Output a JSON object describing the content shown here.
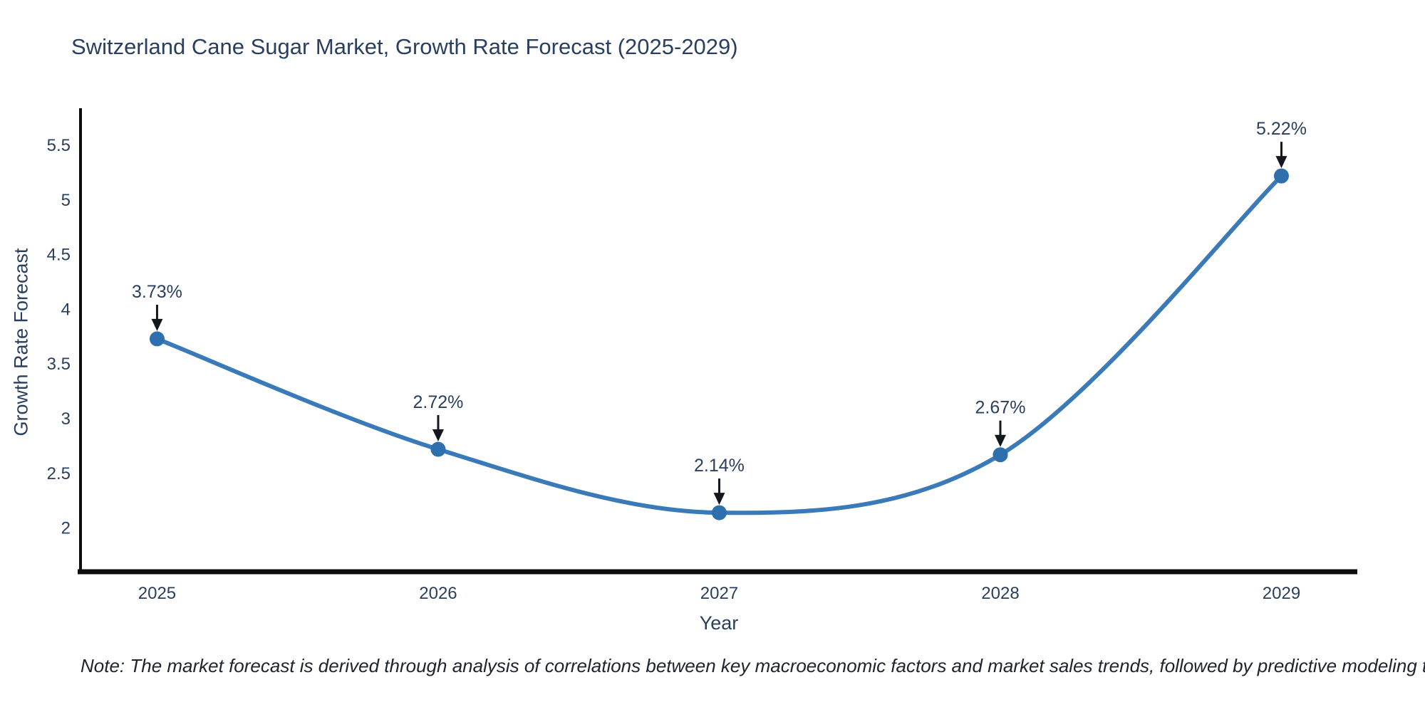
{
  "title": "Switzerland Cane Sugar Market, Growth Rate Forecast (2025-2029)",
  "note": "Note: The market forecast is derived through analysis of correlations between key macroeconomic factors and market sales trends, followed by predictive modeling to project future sales",
  "chart_data": {
    "type": "line",
    "title": "Switzerland Cane Sugar Market, Growth Rate Forecast (2025-2029)",
    "xlabel": "Year",
    "ylabel": "Growth Rate Forecast",
    "x": [
      2025,
      2026,
      2027,
      2028,
      2029
    ],
    "series": [
      {
        "name": "Growth Rate Forecast",
        "values": [
          3.73,
          2.72,
          2.14,
          2.67,
          5.22
        ],
        "point_labels": [
          "3.73%",
          "2.72%",
          "2.14%",
          "2.67%",
          "5.22%"
        ]
      }
    ],
    "x_tick_labels": [
      "2025",
      "2026",
      "2027",
      "2028",
      "2029"
    ],
    "y_ticks": [
      2,
      2.5,
      3,
      3.5,
      4,
      4.5,
      5,
      5.5
    ],
    "y_tick_labels": [
      "2",
      "2.5",
      "3",
      "3.5",
      "4",
      "4.5",
      "5",
      "5.5"
    ],
    "xlim": [
      2024.72,
      2029.27
    ],
    "ylim": [
      1.6,
      5.82
    ],
    "line_shape": "spline",
    "grid": false,
    "legend_position": "none",
    "colors": {
      "line": "#3a7ab8",
      "marker": "#2e6fae",
      "axis": "#0d0d0d",
      "text": "#2a3f5f",
      "annotation_arrow": "#14171c"
    }
  }
}
